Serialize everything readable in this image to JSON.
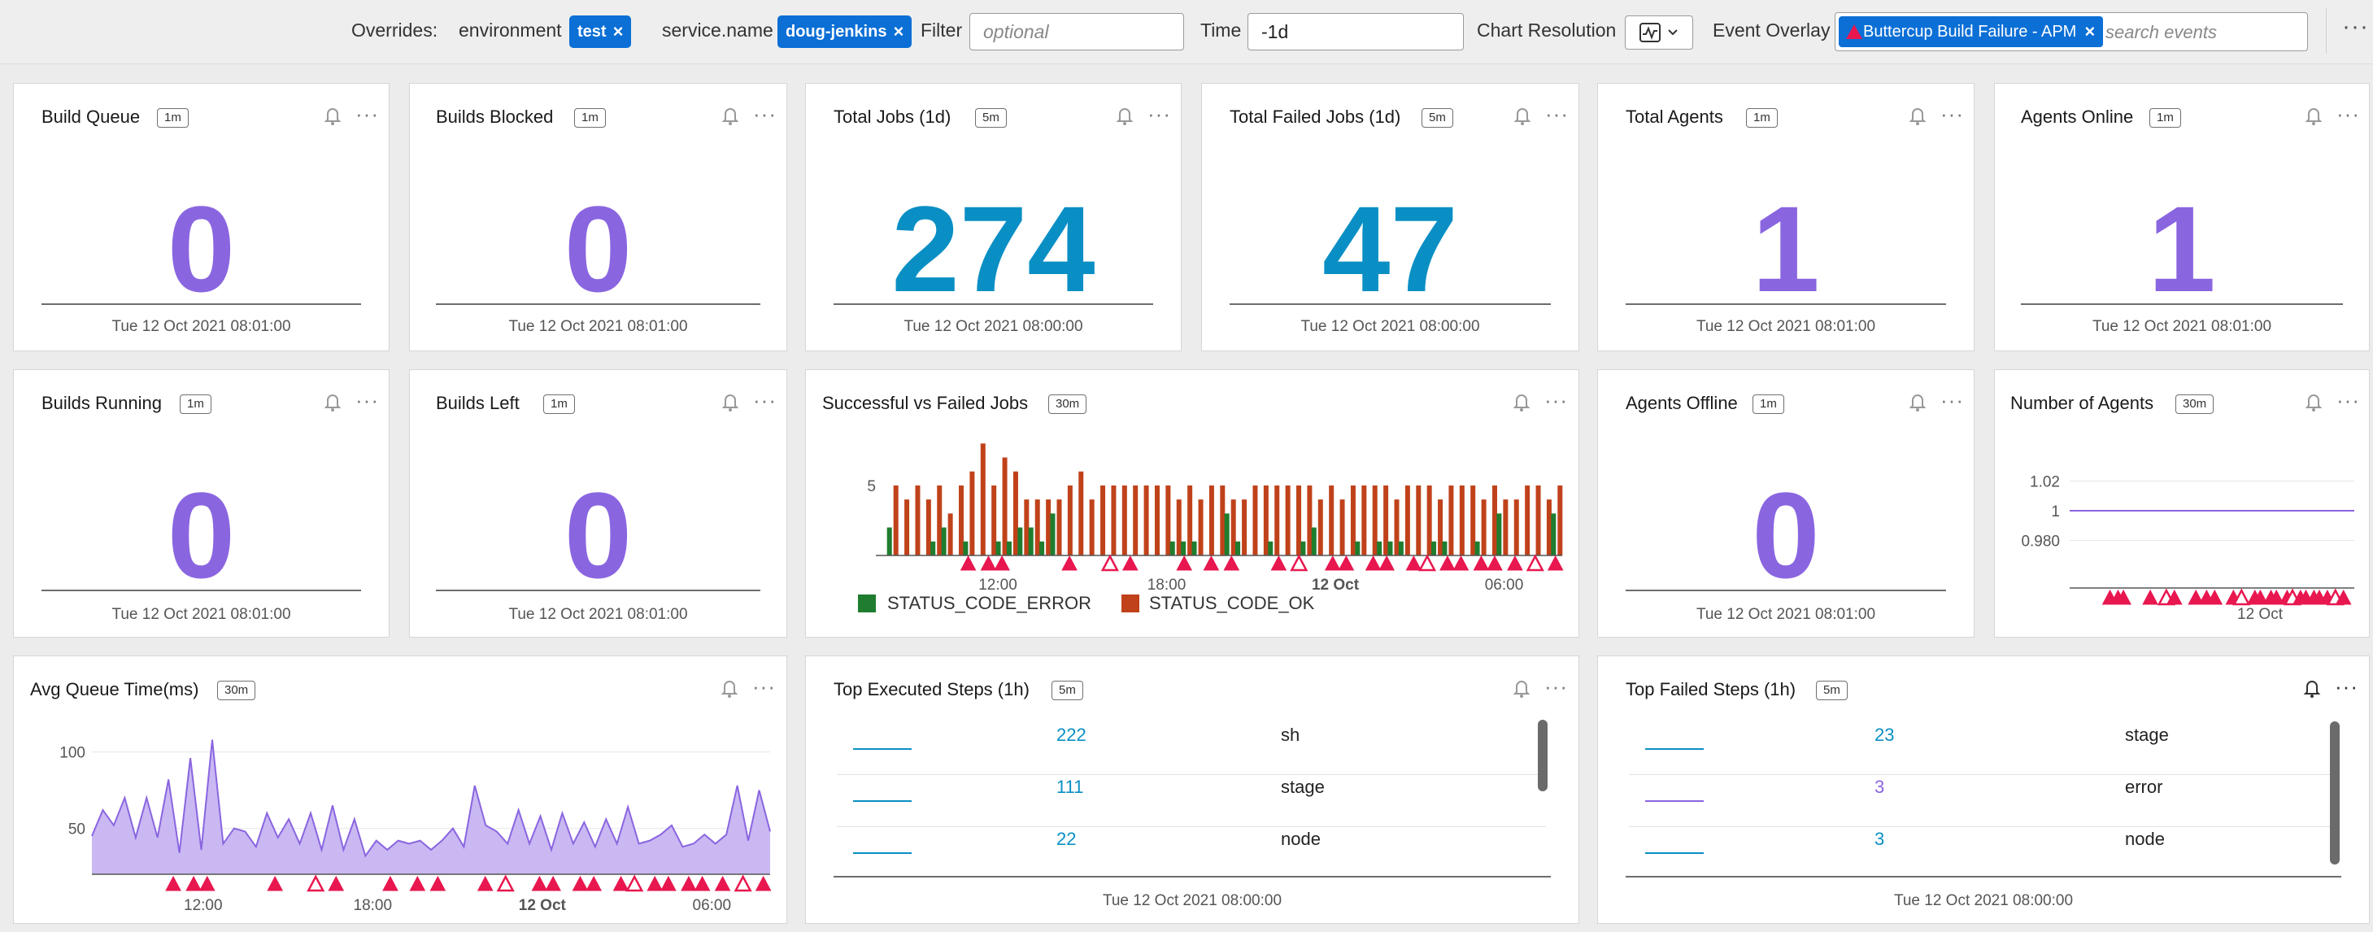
{
  "topbar": {
    "overrides_label": "Overrides:",
    "environment_label": "environment",
    "environment_value": "test",
    "service_label": "service.name",
    "service_value": "doug-jenkins",
    "filter_label": "Filter",
    "filter_placeholder": "optional",
    "time_label": "Time",
    "time_value": "-1d",
    "resolution_label": "Chart Resolution",
    "overlay_label": "Event Overlay",
    "overlay_chip": "Buttercup Build Failure - APM",
    "overlay_placeholder": "search events",
    "more_icon": "ellipsis-icon"
  },
  "colors": {
    "purple": "#8a65e0",
    "blue": "#0a8fc4",
    "ok": "#c0421a",
    "error": "#1e7d2e",
    "event": "#e8174f"
  },
  "panels": {
    "build_queue": {
      "title": "Build Queue",
      "badge": "1m",
      "value": "0",
      "ts": "Tue 12 Oct 2021 08:01:00"
    },
    "builds_blocked": {
      "title": "Builds Blocked",
      "badge": "1m",
      "value": "0",
      "ts": "Tue 12 Oct 2021 08:01:00"
    },
    "total_jobs": {
      "title": "Total Jobs (1d)",
      "badge": "5m",
      "value": "274",
      "ts": "Tue 12 Oct 2021 08:00:00"
    },
    "total_failed": {
      "title": "Total Failed Jobs (1d)",
      "badge": "5m",
      "value": "47",
      "ts": "Tue 12 Oct 2021 08:00:00"
    },
    "total_agents": {
      "title": "Total Agents",
      "badge": "1m",
      "value": "1",
      "ts": "Tue 12 Oct 2021 08:01:00"
    },
    "agents_online": {
      "title": "Agents Online",
      "badge": "1m",
      "value": "1",
      "ts": "Tue 12 Oct 2021 08:01:00"
    },
    "builds_running": {
      "title": "Builds Running",
      "badge": "1m",
      "value": "0",
      "ts": "Tue 12 Oct 2021 08:01:00"
    },
    "builds_left": {
      "title": "Builds Left",
      "badge": "1m",
      "value": "0",
      "ts": "Tue 12 Oct 2021 08:01:00"
    },
    "succ_failed": {
      "title": "Successful vs Failed Jobs",
      "badge": "30m"
    },
    "agents_offline": {
      "title": "Agents Offline",
      "badge": "1m",
      "value": "0",
      "ts": "Tue 12 Oct 2021 08:01:00"
    },
    "num_agents": {
      "title": "Number of Agents",
      "badge": "30m"
    },
    "avg_queue": {
      "title": "Avg Queue Time(ms)",
      "badge": "30m"
    },
    "top_exec": {
      "title": "Top Executed Steps (1h)",
      "badge": "5m",
      "ts": "Tue 12 Oct 2021 08:00:00",
      "rows": [
        {
          "value": "222",
          "name": "sh"
        },
        {
          "value": "111",
          "name": "stage"
        },
        {
          "value": "22",
          "name": "node"
        }
      ]
    },
    "top_failed": {
      "title": "Top Failed Steps (1h)",
      "badge": "5m",
      "ts": "Tue 12 Oct 2021 08:00:00",
      "rows": [
        {
          "value": "23",
          "name": "stage"
        },
        {
          "value": "3",
          "name": "error"
        },
        {
          "value": "3",
          "name": "node"
        }
      ]
    }
  },
  "chart_data": [
    {
      "type": "bar",
      "title": "Successful vs Failed Jobs",
      "x_ticks": [
        "12:00",
        "18:00",
        "12 Oct",
        "06:00"
      ],
      "y_ticks": [
        5
      ],
      "ylim": [
        0,
        8.6
      ],
      "series": [
        {
          "name": "STATUS_CODE_ERROR",
          "values": [
            2,
            0,
            0,
            0,
            1,
            2,
            0,
            1,
            0,
            0,
            1,
            1,
            2,
            2,
            1,
            3,
            0,
            0,
            0,
            0,
            0,
            0,
            0,
            0,
            0,
            0,
            1,
            1,
            1,
            0,
            0,
            3,
            1,
            0,
            0,
            1,
            0,
            0,
            1,
            2,
            0,
            0,
            0,
            1,
            0,
            1,
            1,
            1,
            0,
            0,
            1,
            1,
            0,
            0,
            1,
            0,
            3,
            0,
            0,
            0,
            0,
            3
          ]
        },
        {
          "name": "STATUS_CODE_OK",
          "values": [
            5,
            4,
            5,
            4,
            5,
            3,
            5,
            6,
            8,
            5,
            7,
            6,
            4,
            4,
            4,
            4,
            5,
            6,
            4,
            5,
            5,
            5,
            5,
            5,
            5,
            5,
            4,
            5,
            4,
            5,
            5,
            4,
            4,
            5,
            5,
            5,
            5,
            5,
            5,
            4,
            5,
            4,
            5,
            5,
            5,
            5,
            4,
            5,
            5,
            5,
            4,
            5,
            5,
            5,
            4,
            5,
            4,
            4,
            5,
            5,
            4,
            5
          ]
        }
      ],
      "events": 24,
      "legend": "bottom-left"
    },
    {
      "type": "line",
      "title": "Number of Agents",
      "y_ticks": [
        "1.02",
        "1",
        "0.980"
      ],
      "ylim": [
        0.97,
        1.03
      ],
      "x_ticks": [
        "12 Oct"
      ],
      "series": [
        {
          "values": [
            1,
            1,
            1,
            1,
            1,
            1,
            1,
            1,
            1,
            1
          ]
        }
      ],
      "events": 24
    },
    {
      "type": "area",
      "title": "Avg Queue Time(ms)",
      "y_ticks": [
        100,
        50
      ],
      "ylim": [
        20,
        120
      ],
      "x_ticks": [
        "12:00",
        "18:00",
        "12 Oct",
        "06:00"
      ],
      "series": [
        {
          "values": [
            45,
            62,
            52,
            70,
            44,
            70,
            44,
            82,
            34,
            96,
            36,
            108,
            40,
            50,
            48,
            38,
            60,
            44,
            56,
            40,
            60,
            36,
            65,
            36,
            56,
            32,
            42,
            36,
            42,
            40,
            42,
            36,
            42,
            50,
            38,
            78,
            52,
            48,
            40,
            62,
            40,
            58,
            36,
            60,
            40,
            54,
            38,
            56,
            40,
            64,
            40,
            42,
            46,
            52,
            38,
            40,
            46,
            40,
            46,
            78,
            42,
            75,
            48
          ]
        }
      ],
      "events": 24
    }
  ]
}
